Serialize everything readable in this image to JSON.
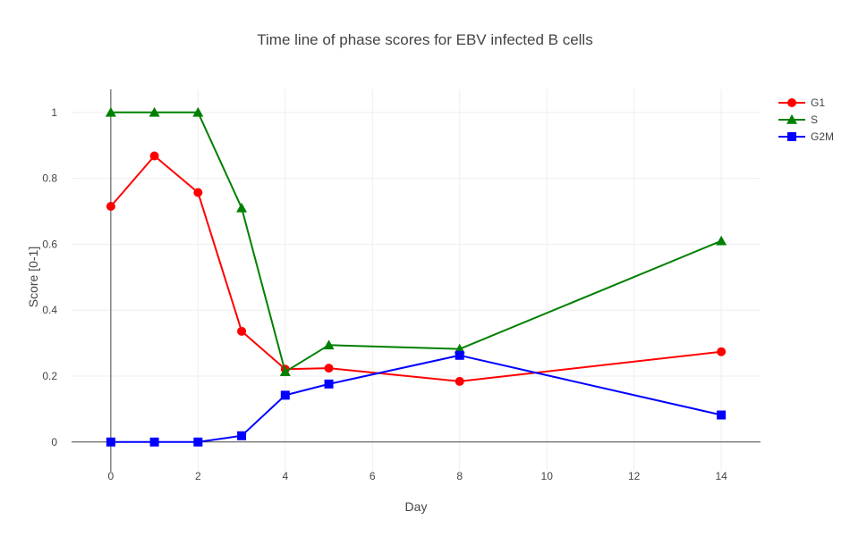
{
  "chart_data": {
    "type": "line",
    "title": "Time line of phase scores for EBV infected B cells",
    "xlabel": "Day",
    "ylabel": "Score [0-1]",
    "xlim": [
      -0.9,
      14.9
    ],
    "ylim": [
      -0.09,
      1.07
    ],
    "x_ticks": [
      0,
      2,
      4,
      6,
      8,
      10,
      12,
      14
    ],
    "x_tick_labels": [
      "0",
      "2",
      "4",
      "6",
      "8",
      "10",
      "12",
      "14"
    ],
    "y_ticks": [
      0,
      0.2,
      0.4,
      0.6,
      0.8,
      1
    ],
    "y_tick_labels": [
      "0",
      "0.2",
      "0.4",
      "0.6",
      "0.8",
      "1"
    ],
    "grid": true,
    "legend_position": "top-right",
    "x": [
      0,
      1,
      2,
      3,
      4,
      5,
      8,
      14
    ],
    "series": [
      {
        "name": "G1",
        "color": "#ff0000",
        "marker": "circle",
        "values": [
          0.715,
          0.868,
          0.757,
          0.336,
          0.221,
          0.224,
          0.184,
          0.274
        ]
      },
      {
        "name": "S",
        "color": "#008000",
        "marker": "triangle",
        "values": [
          1.0,
          1.0,
          1.0,
          0.71,
          0.213,
          0.294,
          0.282,
          0.61
        ]
      },
      {
        "name": "G2M",
        "color": "#0000ff",
        "marker": "square",
        "values": [
          0.0,
          0.0,
          0.0,
          0.019,
          0.142,
          0.176,
          0.263,
          0.082
        ]
      }
    ]
  }
}
